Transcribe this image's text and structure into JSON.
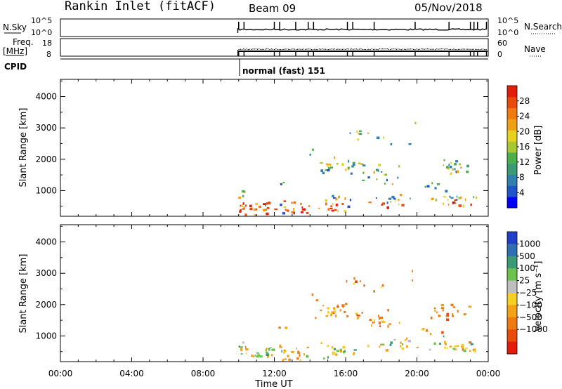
{
  "header": {
    "station": "Rankin Inlet (fitACF)",
    "beam": "Beam 09",
    "date": "05/Nov/2018"
  },
  "top_panels": {
    "nsky": {
      "label": "N.Sky",
      "ticks": [
        "10^5",
        "10^0"
      ],
      "right_label": "N.Search",
      "right_ticks": [
        "10^5",
        "10^0"
      ]
    },
    "freq": {
      "label_line1": "Freq.",
      "label_line2": "[MHz]",
      "ticks": [
        "18",
        "8"
      ],
      "right_label": "Nave",
      "right_ticks": [
        "60",
        "0"
      ]
    },
    "cpid": {
      "label": "CPID",
      "mode_text": "normal (fast) 151"
    }
  },
  "chart_data": [
    {
      "type": "heatmap",
      "name": "power",
      "ylabel": "Slant Range [km]",
      "yticks": [
        "1000",
        "2000",
        "3000",
        "4000"
      ],
      "ylim": [
        180,
        4550
      ],
      "colorbar": {
        "label": "Power [dB]",
        "ticks": [
          "4",
          "8",
          "12",
          "16",
          "20",
          "24",
          "28"
        ],
        "range": [
          0,
          32
        ],
        "colors": [
          "#0000ff",
          "#1f55c8",
          "#2f7fb0",
          "#3a9a76",
          "#4cae4c",
          "#a8c832",
          "#e6d21e",
          "#f0a014",
          "#ee7a10",
          "#ea4a0a",
          "#e41c0a"
        ]
      }
    },
    {
      "type": "heatmap",
      "name": "velocity",
      "ylabel": "Slant Range [km]",
      "yticks": [
        "1000",
        "2000",
        "3000",
        "4000"
      ],
      "ylim": [
        180,
        4550
      ],
      "colorbar": {
        "label": "Velocity [m s⁻¹]",
        "ticks": [
          "1000",
          "500",
          "100",
          "25",
          "−25",
          "−100",
          "−500",
          "−1000"
        ],
        "colors": [
          "#1f3fc8",
          "#2f6fb0",
          "#3a9a76",
          "#6cc24a",
          "#bfbfbf",
          "#f5d020",
          "#f3a215",
          "#ee7a10",
          "#ea4a0a",
          "#e41c0a"
        ]
      }
    }
  ],
  "xaxis": {
    "label": "Time UT",
    "ticks": [
      "00:00",
      "04:00",
      "08:00",
      "12:00",
      "16:00",
      "20:00",
      "00:00"
    ],
    "range_hours": [
      0,
      24
    ]
  }
}
